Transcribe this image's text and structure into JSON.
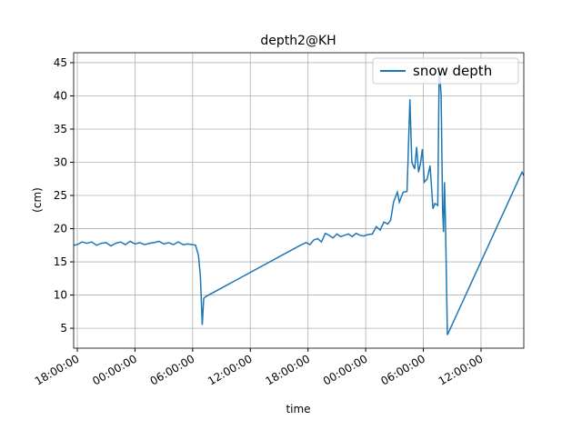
{
  "chart_data": {
    "type": "line",
    "title": "depth2@KH",
    "x_label": "time",
    "y_label": "(cm)",
    "x": [
      -0.38,
      0,
      0.5,
      1,
      1.5,
      2,
      2.5,
      3,
      3.5,
      4,
      4.5,
      5,
      5.5,
      6,
      6.5,
      7,
      7.5,
      8,
      8.5,
      9,
      9.5,
      10,
      10.5,
      11,
      11.5,
      12.0,
      12.3,
      12.6,
      12.8,
      13.0,
      13.15,
      13.4,
      23.2,
      23.8,
      24.2,
      24.6,
      25.0,
      25.4,
      25.8,
      26.2,
      26.6,
      27.0,
      27.4,
      27.8,
      28.2,
      28.6,
      29.0,
      29.4,
      29.8,
      30.2,
      30.7,
      31.1,
      31.5,
      31.9,
      32.3,
      32.6,
      32.9,
      33.3,
      33.5,
      33.9,
      34.3,
      34.4,
      34.6,
      34.8,
      35.1,
      35.3,
      35.5,
      35.7,
      35.9,
      36.1,
      36.4,
      36.7,
      37.0,
      37.2,
      37.5,
      37.65,
      37.85,
      38.0,
      38.1,
      38.2,
      38.3,
      38.5,
      46.26,
      46.45
    ],
    "series": [
      {
        "name": "snow depth",
        "color": "#1f77b4",
        "values": [
          17.5,
          17.6,
          18,
          17.8,
          18,
          17.5,
          17.8,
          17.9,
          17.4,
          17.8,
          18,
          17.6,
          18.1,
          17.7,
          17.9,
          17.6,
          17.8,
          17.9,
          18.1,
          17.7,
          17.9,
          17.6,
          18,
          17.6,
          17.7,
          17.6,
          17.5,
          16,
          13,
          5.5,
          9.5,
          9.8,
          17.5,
          17.9,
          17.6,
          18.3,
          18.5,
          18,
          19.3,
          19,
          18.6,
          19.2,
          18.8,
          19,
          19.2,
          18.8,
          19.3,
          19,
          18.9,
          19.1,
          19.2,
          20.3,
          19.8,
          21,
          20.7,
          21.3,
          24,
          25.5,
          24,
          25.5,
          25.6,
          30,
          39.5,
          30,
          29,
          32.3,
          28.5,
          29.8,
          32,
          27,
          27.5,
          29.5,
          23,
          23.8,
          23.5,
          44.5,
          40,
          23,
          19.5,
          27,
          21,
          4,
          28.5,
          28
        ]
      }
    ],
    "xlim": [
      -0.38,
      46.45
    ],
    "xticks": [
      {
        "value": 0,
        "label": "18:00:00"
      },
      {
        "value": 6,
        "label": "00:00:00"
      },
      {
        "value": 12,
        "label": "06:00:00"
      },
      {
        "value": 18,
        "label": "12:00:00"
      },
      {
        "value": 24,
        "label": "18:00:00"
      },
      {
        "value": 30,
        "label": "00:00:00"
      },
      {
        "value": 36,
        "label": "06:00:00"
      },
      {
        "value": 42,
        "label": "12:00:00"
      }
    ],
    "ylim": [
      2.0,
      46.5
    ],
    "yticks": [
      5,
      10,
      15,
      20,
      25,
      30,
      35,
      40,
      45
    ],
    "grid": true,
    "legend": "upper right"
  }
}
